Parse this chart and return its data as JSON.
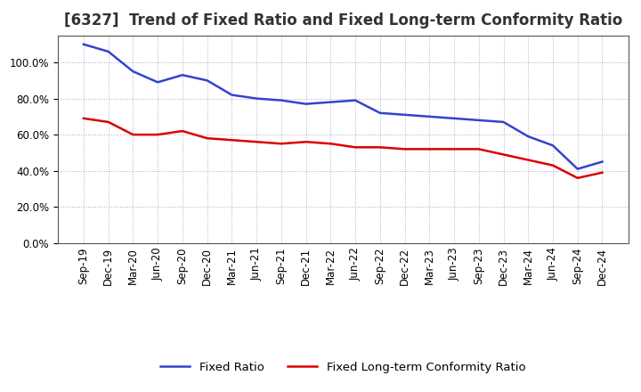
{
  "title": "[6327]  Trend of Fixed Ratio and Fixed Long-term Conformity Ratio",
  "x_labels": [
    "Sep-19",
    "Dec-19",
    "Mar-20",
    "Jun-20",
    "Sep-20",
    "Dec-20",
    "Mar-21",
    "Jun-21",
    "Sep-21",
    "Dec-21",
    "Mar-22",
    "Jun-22",
    "Sep-22",
    "Dec-22",
    "Mar-23",
    "Jun-23",
    "Sep-23",
    "Dec-23",
    "Mar-24",
    "Jun-24",
    "Sep-24",
    "Dec-24"
  ],
  "fixed_ratio": [
    1.1,
    1.06,
    0.95,
    0.89,
    0.93,
    0.9,
    0.82,
    0.8,
    0.79,
    0.77,
    0.78,
    0.79,
    0.72,
    0.71,
    0.7,
    0.69,
    0.68,
    0.67,
    0.59,
    0.54,
    0.41,
    0.45
  ],
  "fixed_lt_ratio": [
    0.69,
    0.67,
    0.6,
    0.6,
    0.62,
    0.58,
    0.57,
    0.56,
    0.55,
    0.56,
    0.55,
    0.53,
    0.53,
    0.52,
    0.52,
    0.52,
    0.52,
    0.49,
    0.46,
    0.43,
    0.36,
    0.39
  ],
  "fixed_ratio_color": "#3344cc",
  "fixed_lt_ratio_color": "#dd0000",
  "background_color": "#ffffff",
  "grid_color": "#aaaacc",
  "ylim": [
    0.0,
    1.15
  ],
  "yticks": [
    0.0,
    0.2,
    0.4,
    0.6,
    0.8,
    1.0
  ],
  "legend_fixed": "Fixed Ratio",
  "legend_fixed_lt": "Fixed Long-term Conformity Ratio",
  "title_fontsize": 12,
  "tick_fontsize": 8.5,
  "legend_fontsize": 9.5
}
